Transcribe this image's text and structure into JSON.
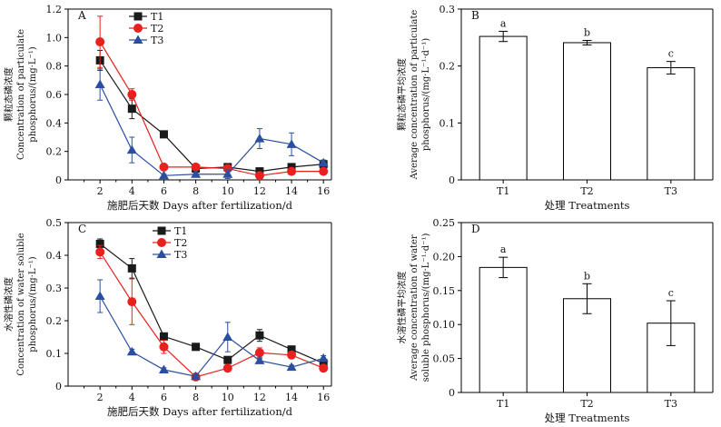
{
  "chart_data": [
    {
      "panel": "A",
      "type": "line",
      "xlabel": "施肥后天数 Days after fertilization/d",
      "ylabel": [
        "颗粒态磷浓度",
        "Concentration of particulate",
        "phosphorus/(mg·L⁻¹)"
      ],
      "ylim": [
        0,
        1.2
      ],
      "yticks": [
        "0",
        "0.2",
        "0.4",
        "0.6",
        "0.8",
        "1.0",
        "1.2"
      ],
      "x": [
        2,
        4,
        6,
        8,
        10,
        12,
        14,
        16
      ],
      "xticks": [
        "2",
        "4",
        "6",
        "8",
        "10",
        "12",
        "14",
        "16"
      ],
      "legend_position": "top-left",
      "series": [
        {
          "name": "T1",
          "color": "#1a1a1a",
          "marker": "square",
          "values": [
            0.84,
            0.5,
            0.32,
            0.08,
            0.09,
            0.06,
            0.09,
            0.11
          ],
          "errors": [
            0.07,
            0.07,
            0.01,
            0.01,
            0.01,
            0.01,
            0.01,
            0.01
          ]
        },
        {
          "name": "T2",
          "color": "#e8201e",
          "marker": "circle",
          "values": [
            0.97,
            0.6,
            0.09,
            0.09,
            0.08,
            0.03,
            0.06,
            0.06
          ],
          "errors": [
            0.18,
            0.04,
            0.01,
            0.01,
            0.01,
            0.01,
            0.01,
            0.01
          ]
        },
        {
          "name": "T3",
          "color": "#2b4fa0",
          "marker": "triangle",
          "values": [
            0.67,
            0.21,
            0.03,
            0.04,
            0.04,
            0.29,
            0.25,
            0.12
          ],
          "errors": [
            0.11,
            0.09,
            0.01,
            0.01,
            0.03,
            0.07,
            0.08,
            0.02
          ]
        }
      ]
    },
    {
      "panel": "B",
      "type": "bar",
      "xlabel": "处理 Treatments",
      "ylabel": [
        "颗粒态磷平均浓度",
        "Average concentration of particulate",
        "phosphorus/(mg·L⁻¹·d⁻¹)"
      ],
      "ylim": [
        0,
        0.3
      ],
      "yticks": [
        "0",
        "0.1",
        "0.2",
        "0.3"
      ],
      "categories": [
        "T1",
        "T2",
        "T3"
      ],
      "values": [
        0.252,
        0.241,
        0.197
      ],
      "errors": [
        0.009,
        0.004,
        0.011
      ],
      "letters": [
        "a",
        "b",
        "c"
      ]
    },
    {
      "panel": "C",
      "type": "line",
      "xlabel": "施肥后天数 Days after fertilization/d",
      "ylabel": [
        "水溶性磷浓度",
        "Concentration of water soluble",
        "phosphorus/(mg·L⁻¹)"
      ],
      "ylim": [
        0,
        0.5
      ],
      "yticks": [
        "0",
        "0.1",
        "0.2",
        "0.3",
        "0.4",
        "0.5"
      ],
      "x": [
        2,
        4,
        6,
        8,
        10,
        12,
        14,
        16
      ],
      "xticks": [
        "2",
        "4",
        "6",
        "8",
        "10",
        "12",
        "14",
        "16"
      ],
      "legend_position": "top-center",
      "series": [
        {
          "name": "T1",
          "color": "#1a1a1a",
          "marker": "square",
          "values": [
            0.435,
            0.36,
            0.152,
            0.12,
            0.08,
            0.155,
            0.112,
            0.07
          ],
          "errors": [
            0.015,
            0.03,
            0.005,
            0.005,
            0.005,
            0.018,
            0.006,
            0.005
          ]
        },
        {
          "name": "T2",
          "color": "#e8201e",
          "marker": "circle",
          "values": [
            0.41,
            0.258,
            0.12,
            0.028,
            0.055,
            0.102,
            0.095,
            0.055
          ],
          "errors": [
            0.02,
            0.07,
            0.02,
            0.005,
            0.005,
            0.015,
            0.006,
            0.005
          ]
        },
        {
          "name": "T3",
          "color": "#2b4fa0",
          "marker": "triangle",
          "values": [
            0.275,
            0.105,
            0.05,
            0.03,
            0.15,
            0.078,
            0.058,
            0.085
          ],
          "errors": [
            0.05,
            0.008,
            0.006,
            0.004,
            0.045,
            0.006,
            0.006,
            0.008
          ]
        }
      ]
    },
    {
      "panel": "D",
      "type": "bar",
      "xlabel": "处理 Treatments",
      "ylabel": [
        "水溶性磷平均浓度",
        "Average concentration of water",
        "soluble phosphorus/(mg·L⁻¹·d⁻¹)"
      ],
      "ylim": [
        0,
        0.25
      ],
      "yticks": [
        "0",
        "0.05",
        "0.10",
        "0.15",
        "0.20",
        "0.25"
      ],
      "categories": [
        "T1",
        "T2",
        "T3"
      ],
      "values": [
        0.184,
        0.138,
        0.102
      ],
      "errors": [
        0.015,
        0.022,
        0.033
      ],
      "letters": [
        "a",
        "b",
        "c"
      ]
    }
  ]
}
